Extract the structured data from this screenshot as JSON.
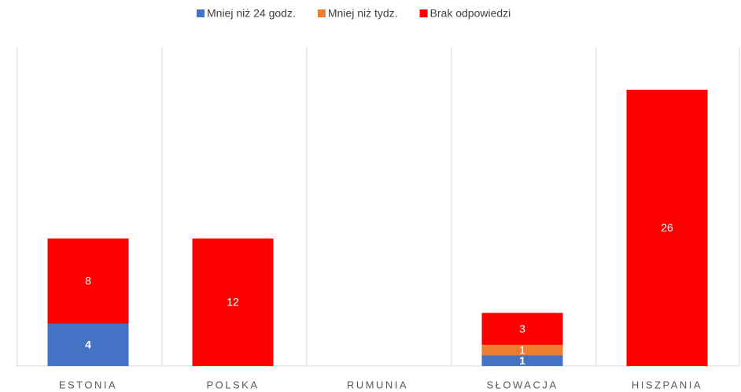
{
  "chart_data": {
    "type": "bar",
    "stacked": true,
    "categories": [
      "ESTONIA",
      "POLSKA",
      "RUMUNIA",
      "SŁOWACJA",
      "HISZPANIA"
    ],
    "series": [
      {
        "name": "Mniej niż 24 godz.",
        "color": "#4472c4",
        "values": [
          4,
          null,
          null,
          1,
          null
        ]
      },
      {
        "name": "Mniej niż tydz.",
        "color": "#ed7d31",
        "values": [
          null,
          null,
          null,
          1,
          null
        ]
      },
      {
        "name": "Brak odpowiedzi",
        "color": "#ff0000",
        "values": [
          8,
          12,
          null,
          3,
          26
        ]
      }
    ],
    "ylim": [
      0,
      30
    ],
    "legend": "top"
  }
}
